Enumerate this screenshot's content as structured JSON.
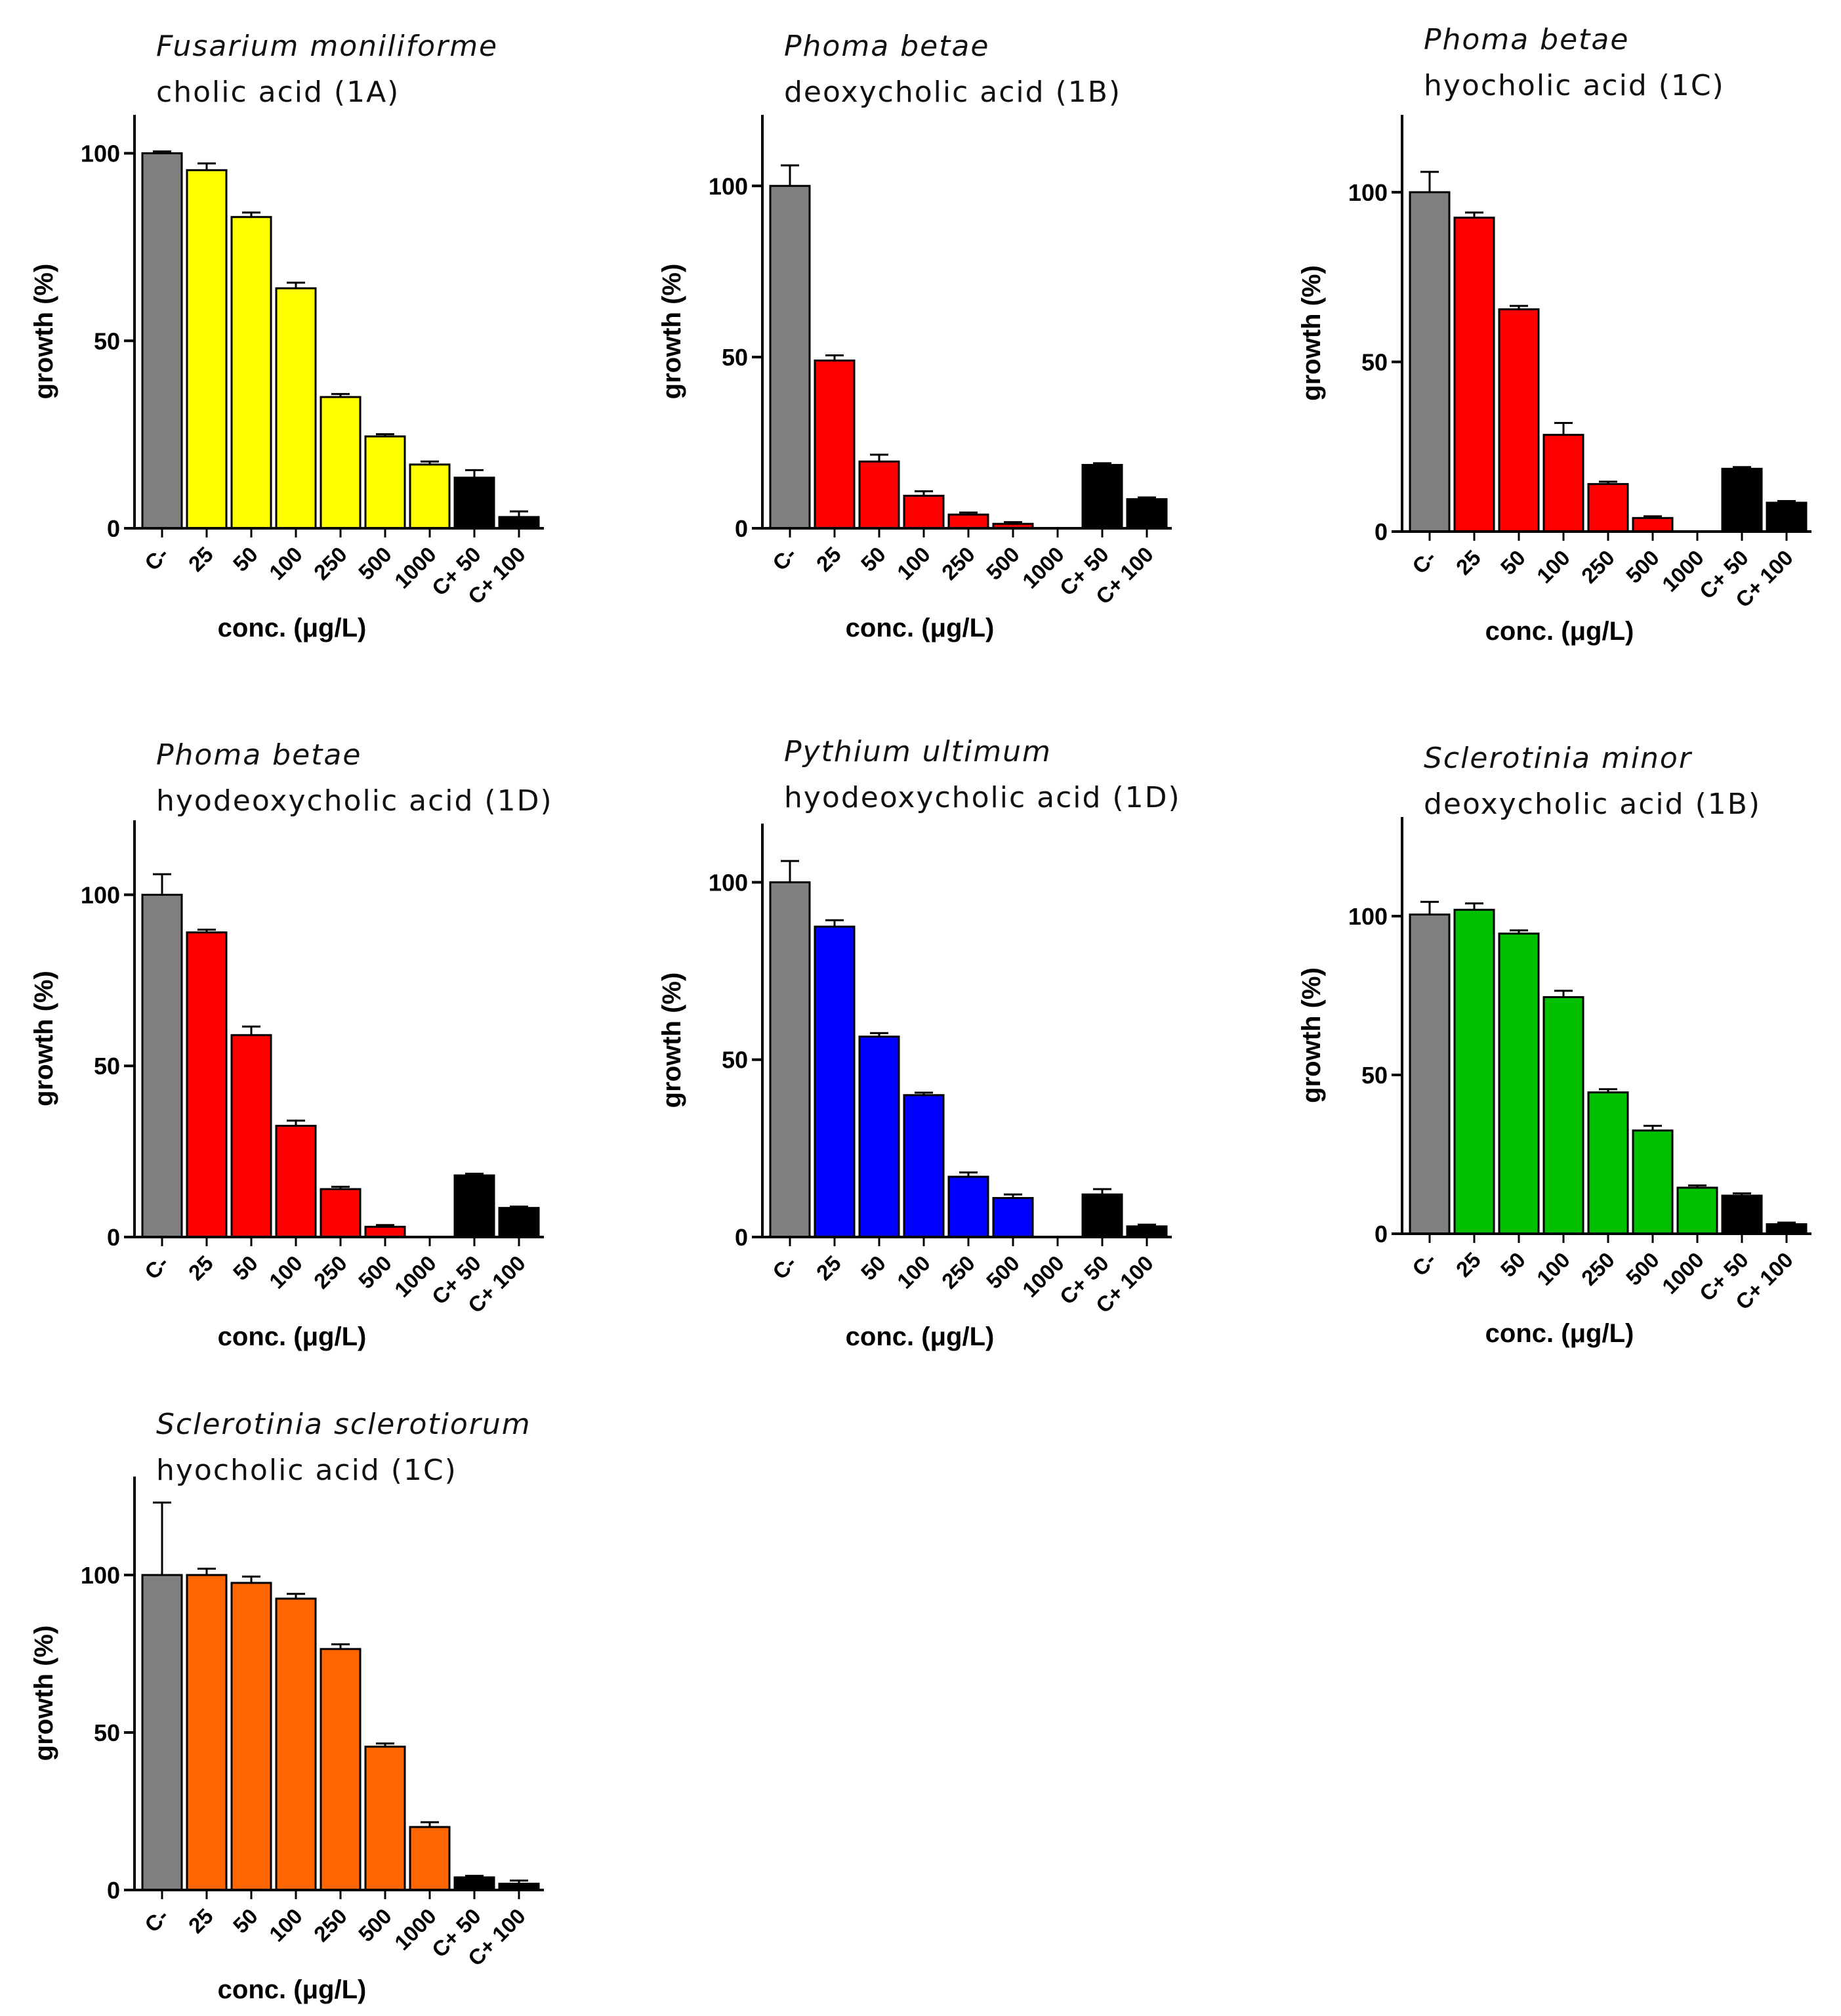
{
  "chart_data": [
    {
      "type": "bar",
      "title_species": "Fusarium moniliforme",
      "title_acid": "cholic acid (1A)",
      "xlabel": "conc. (μg/L)",
      "ylabel": "growth (%)",
      "ylim": [
        0,
        105
      ],
      "yticks": [
        0,
        50,
        100
      ],
      "categories": [
        "C-",
        "25",
        "50",
        "100",
        "250",
        "500",
        "1000",
        "C+ 50",
        "C+ 100"
      ],
      "values": [
        100,
        95.5,
        83,
        64,
        35,
        24.5,
        17,
        13.5,
        3
      ],
      "errors": [
        0.5,
        1.8,
        1.2,
        1.5,
        0.8,
        0.6,
        0.8,
        2,
        1.5
      ],
      "colors": [
        "#808080",
        "#ffff00",
        "#ffff00",
        "#ffff00",
        "#ffff00",
        "#ffff00",
        "#ffff00",
        "#000000",
        "#000000"
      ]
    },
    {
      "type": "bar",
      "title_species": "Phoma betae",
      "title_acid": "deoxycholic acid (1B)",
      "xlabel": "conc. (μg/L)",
      "ylabel": "growth (%)",
      "ylim": [
        0,
        115
      ],
      "yticks": [
        0,
        50,
        100
      ],
      "categories": [
        "C-",
        "25",
        "50",
        "100",
        "250",
        "500",
        "1000",
        "C+ 50",
        "C+ 100"
      ],
      "values": [
        100,
        49,
        19.5,
        9.5,
        4,
        1.3,
        0,
        18.5,
        8.5
      ],
      "errors": [
        6,
        1.5,
        2,
        1.3,
        0.6,
        0.5,
        0,
        0.5,
        0.5
      ],
      "colors": [
        "#808080",
        "#ff0000",
        "#ff0000",
        "#ff0000",
        "#ff0000",
        "#ff0000",
        "#ff0000",
        "#000000",
        "#000000"
      ]
    },
    {
      "type": "bar",
      "title_species": "Phoma betae",
      "title_acid": "hyocholic acid (1C)",
      "xlabel": "conc. (μg/L)",
      "ylabel": "growth (%)",
      "ylim": [
        0,
        117
      ],
      "yticks": [
        0,
        50,
        100
      ],
      "categories": [
        "C-",
        "25",
        "50",
        "100",
        "250",
        "500",
        "1000",
        "C+ 50",
        "C+ 100"
      ],
      "values": [
        100,
        92.5,
        65.5,
        28.5,
        14,
        4,
        0,
        18.5,
        8.5
      ],
      "errors": [
        6,
        1.5,
        1,
        3.5,
        0.7,
        0.5,
        0,
        0.5,
        0.5
      ],
      "colors": [
        "#808080",
        "#ff0000",
        "#ff0000",
        "#ff0000",
        "#ff0000",
        "#ff0000",
        "#ff0000",
        "#000000",
        "#000000"
      ]
    },
    {
      "type": "bar",
      "title_species": "Phoma betae",
      "title_acid": "hyodeoxycholic acid (1D)",
      "xlabel": "conc. (μg/L)",
      "ylabel": "growth (%)",
      "ylim": [
        0,
        116
      ],
      "yticks": [
        0,
        50,
        100
      ],
      "categories": [
        "C-",
        "25",
        "50",
        "100",
        "250",
        "500",
        "1000",
        "C+ 50",
        "C+ 100"
      ],
      "values": [
        100,
        89,
        59,
        32.5,
        14,
        3,
        0,
        18,
        8.5
      ],
      "errors": [
        6,
        0.8,
        2.5,
        1.5,
        0.7,
        0.5,
        0,
        0.5,
        0.4
      ],
      "colors": [
        "#808080",
        "#ff0000",
        "#ff0000",
        "#ff0000",
        "#ff0000",
        "#ff0000",
        "#ff0000",
        "#000000",
        "#000000"
      ]
    },
    {
      "type": "bar",
      "title_species": "Pythium ultimum",
      "title_acid": "hyodeoxycholic acid (1D)",
      "xlabel": "conc. (μg/L)",
      "ylabel": "growth (%)",
      "ylim": [
        0,
        111
      ],
      "yticks": [
        0,
        50,
        100
      ],
      "categories": [
        "C-",
        "25",
        "50",
        "100",
        "250",
        "500",
        "1000",
        "C+ 50",
        "C+ 100"
      ],
      "values": [
        100,
        87.5,
        56.5,
        40,
        17,
        11,
        0,
        12,
        3
      ],
      "errors": [
        6,
        1.8,
        1,
        0.7,
        1.2,
        1,
        0,
        1.5,
        0.5
      ],
      "colors": [
        "#808080",
        "#0000ff",
        "#0000ff",
        "#0000ff",
        "#0000ff",
        "#0000ff",
        "#0000ff",
        "#000000",
        "#000000"
      ]
    },
    {
      "type": "bar",
      "title_species": "Sclerotinia minor",
      "title_acid": "deoxycholic acid (1B)",
      "xlabel": "conc. (μg/L)",
      "ylabel": "growth (%)",
      "ylim": [
        0,
        125
      ],
      "yticks": [
        0,
        50,
        100
      ],
      "categories": [
        "C-",
        "25",
        "50",
        "100",
        "250",
        "500",
        "1000",
        "C+ 50",
        "C+ 100"
      ],
      "values": [
        100.5,
        102,
        94.5,
        74.5,
        44.5,
        32.5,
        14.5,
        12,
        3
      ],
      "errors": [
        4,
        2,
        1,
        2,
        1,
        1.5,
        0.7,
        0.7,
        0.5
      ],
      "colors": [
        "#808080",
        "#00c000",
        "#00c000",
        "#00c000",
        "#00c000",
        "#00c000",
        "#00c000",
        "#000000",
        "#000000"
      ]
    },
    {
      "type": "bar",
      "title_species": "Sclerotinia sclerotiorum",
      "title_acid": "hyocholic acid (1C)",
      "xlabel": "conc. (μg/L)",
      "ylabel": "growth (%)",
      "ylim": [
        0,
        125
      ],
      "yticks": [
        0,
        50,
        100
      ],
      "categories": [
        "C-",
        "25",
        "50",
        "100",
        "250",
        "500",
        "1000",
        "C+ 50",
        "C+ 100"
      ],
      "values": [
        100,
        100,
        97.5,
        92.5,
        76.5,
        45.5,
        20,
        4,
        2
      ],
      "errors": [
        23,
        2,
        2,
        1.5,
        1.5,
        1,
        1.5,
        0.5,
        1
      ],
      "colors": [
        "#808080",
        "#ff6600",
        "#ff6600",
        "#ff6600",
        "#ff6600",
        "#ff6600",
        "#ff6600",
        "#000000",
        "#000000"
      ]
    }
  ]
}
